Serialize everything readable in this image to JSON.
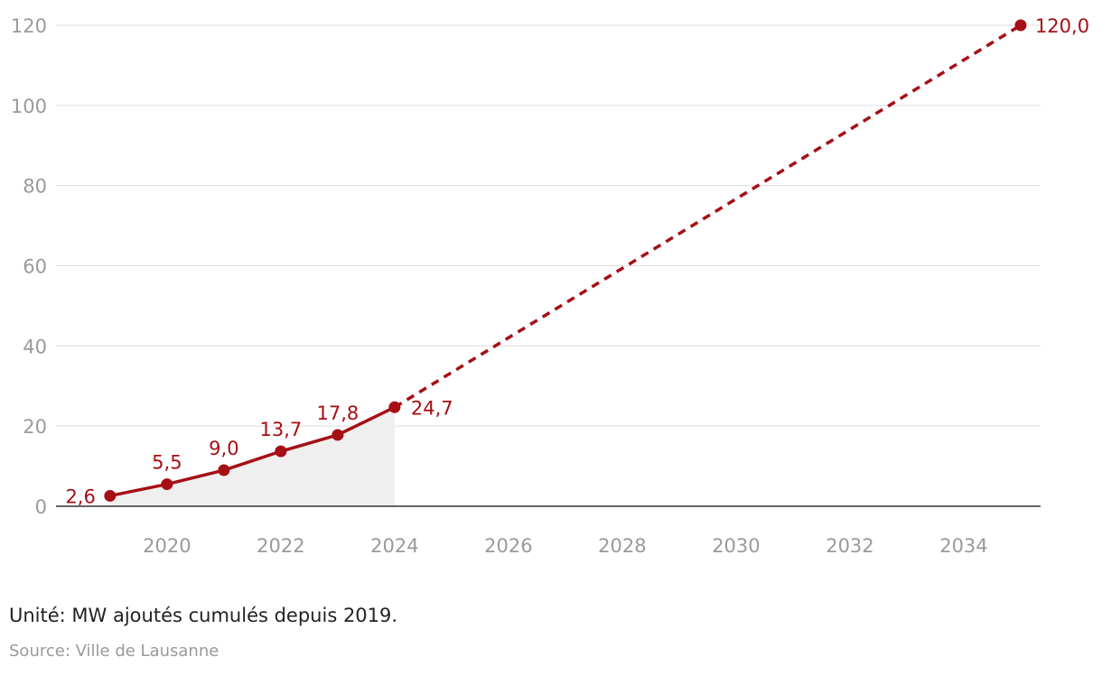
{
  "chart_data": {
    "type": "line",
    "title": "",
    "xlabel": "",
    "ylabel": "",
    "xlim": [
      2018.05,
      2035.35
    ],
    "ylim": [
      0,
      120
    ],
    "x_ticks": [
      2020,
      2022,
      2024,
      2026,
      2028,
      2030,
      2032,
      2034
    ],
    "y_ticks": [
      0,
      20,
      40,
      60,
      80,
      100,
      120
    ],
    "grid": "horizontal",
    "legend": "none",
    "series": [
      {
        "style": "solid",
        "color": "#a50f15",
        "area_fill": "#efefef",
        "x": [
          2019,
          2020,
          2021,
          2022,
          2023,
          2024
        ],
        "values": [
          2.6,
          5.5,
          9.0,
          13.7,
          17.8,
          24.7
        ],
        "labels": [
          "2,6",
          "5,5",
          "9,0",
          "13,7",
          "17,8",
          "24,7"
        ]
      },
      {
        "style": "dashed",
        "color": "#a50f15",
        "x": [
          2024,
          2035
        ],
        "values": [
          24.7,
          120.0
        ],
        "labels": [
          "",
          "120,0"
        ]
      }
    ]
  },
  "note": "Unité: MW ajoutés cumulés depuis 2019.",
  "source": "Source: Ville de Lausanne"
}
